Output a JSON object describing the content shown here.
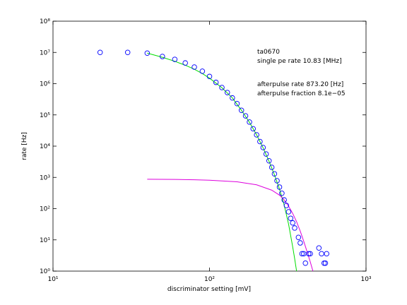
{
  "chart_data": {
    "type": "scatter",
    "xlabel": "discriminator setting [mV]",
    "ylabel": "rate [Hz]",
    "xscale": "log",
    "yscale": "log",
    "xlim": [
      10,
      1000
    ],
    "ylim": [
      1,
      100000000
    ],
    "xticks": [
      {
        "value": 10,
        "label": "10¹"
      },
      {
        "value": 100,
        "label": "10²"
      },
      {
        "value": 1000,
        "label": "10³"
      }
    ],
    "yticks": [
      {
        "value": 1,
        "label": "10⁰"
      },
      {
        "value": 10,
        "label": "10¹"
      },
      {
        "value": 100,
        "label": "10²"
      },
      {
        "value": 1000,
        "label": "10³"
      },
      {
        "value": 10000,
        "label": "10⁴"
      },
      {
        "value": 100000,
        "label": "10⁵"
      },
      {
        "value": 1000000,
        "label": "10⁶"
      },
      {
        "value": 10000000,
        "label": "10⁷"
      },
      {
        "value": 100000000,
        "label": "10⁸"
      }
    ],
    "annotations": [
      "ta0670",
      "single pe rate 10.83 [MHz]",
      "afterpulse rate 873.20 [Hz]",
      "afterpulse fraction 8.1e−05"
    ],
    "points": {
      "color": "#0000ff",
      "x": [
        20,
        30,
        40,
        50,
        60,
        70,
        80,
        90,
        100,
        110,
        120,
        130,
        140,
        150,
        160,
        170,
        180,
        190,
        200,
        210,
        220,
        230,
        240,
        250,
        260,
        270,
        280,
        290,
        300,
        310,
        320,
        330,
        340,
        350,
        370,
        380,
        390,
        400,
        410,
        430,
        440,
        500,
        520,
        540,
        550,
        560
      ],
      "y": [
        10000000,
        10000000,
        9500000,
        7400000,
        6000000,
        4600000,
        3400000,
        2500000,
        1700000,
        1100000,
        750000,
        520000,
        350000,
        230000,
        140000,
        93000,
        59000,
        36000,
        23000,
        14000,
        9000,
        5600,
        3400,
        2100,
        1300,
        780,
        490,
        310,
        190,
        126,
        79,
        49,
        35,
        24,
        12,
        8,
        3.6,
        3.6,
        1.8,
        3.6,
        3.6,
        5.5,
        3.6,
        1.8,
        1.8,
        3.6
      ]
    },
    "curves": [
      {
        "color": "#00dd00",
        "x": [
          40,
          50,
          60,
          70,
          80,
          90,
          100,
          120,
          140,
          160,
          180,
          200,
          220,
          240,
          260,
          280,
          300,
          320,
          340,
          350,
          360
        ],
        "y": [
          9500000,
          7000000,
          5200000,
          3900000,
          2900000,
          2100000,
          1500000,
          740000,
          350000,
          140000,
          58000,
          23000,
          8800,
          3300,
          1200,
          420,
          130,
          32,
          6,
          2.5,
          1
        ]
      },
      {
        "color": "#dd00dd",
        "x": [
          40,
          60,
          80,
          100,
          150,
          200,
          250,
          280,
          300,
          320,
          340,
          360,
          380,
          400,
          420,
          440,
          458
        ],
        "y": [
          873,
          860,
          840,
          810,
          720,
          580,
          390,
          270,
          190,
          120,
          70,
          38,
          19,
          9,
          4.2,
          2,
          1
        ]
      }
    ]
  }
}
